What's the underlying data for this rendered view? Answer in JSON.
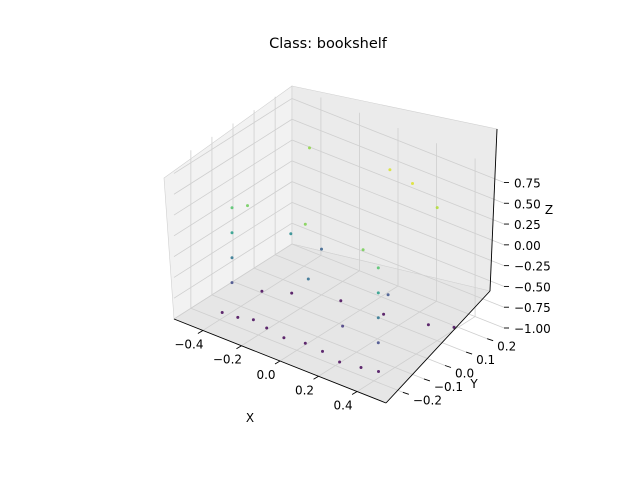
{
  "chart_data": {
    "type": "scatter",
    "title": "Class: bookshelf",
    "xlabel": "X",
    "ylabel": "Y",
    "zlabel": "Z",
    "xlim": [
      -0.55,
      0.55
    ],
    "ylim": [
      -0.28,
      0.28
    ],
    "zlim": [
      -1.0,
      0.9
    ],
    "x_ticks": [
      "−0.4",
      "−0.2",
      "0.0",
      "0.2",
      "0.4"
    ],
    "y_ticks": [
      "−0.2",
      "−0.1",
      "0.0",
      "0.1",
      "0.2"
    ],
    "z_ticks": [
      "−1.00",
      "−0.75",
      "−0.50",
      "−0.25",
      "0.00",
      "0.25",
      "0.50",
      "0.75"
    ],
    "x_tick_values": [
      -0.4,
      -0.2,
      0.0,
      0.2,
      0.4
    ],
    "y_tick_values": [
      -0.2,
      -0.1,
      0.0,
      0.1,
      0.2
    ],
    "z_tick_values": [
      -1.0,
      -0.75,
      -0.5,
      -0.25,
      0.0,
      0.25,
      0.5,
      0.75
    ],
    "colormap": "viridis",
    "color_by": "z",
    "grid": true,
    "marker_size": 1.5,
    "point_color_range": [
      "#440154",
      "#fde725"
    ],
    "series": [
      {
        "points": [
          [
            -0.42,
            -0.17,
            -0.98
          ],
          [
            -0.35,
            -0.16,
            -0.99
          ],
          [
            -0.28,
            -0.15,
            -0.97
          ],
          [
            -0.2,
            -0.16,
            -0.98
          ],
          [
            -0.1,
            -0.17,
            -0.99
          ],
          [
            0.0,
            -0.16,
            -0.98
          ],
          [
            0.1,
            -0.17,
            -0.97
          ],
          [
            0.2,
            -0.18,
            -0.99
          ],
          [
            0.3,
            -0.17,
            -0.98
          ],
          [
            0.38,
            -0.16,
            -0.97
          ],
          [
            -0.4,
            0.0,
            -0.98
          ],
          [
            -0.3,
            0.05,
            -0.99
          ],
          [
            -0.1,
            0.1,
            -0.98
          ],
          [
            0.1,
            0.12,
            -0.99
          ],
          [
            0.3,
            0.15,
            -0.98
          ],
          [
            0.4,
            0.18,
            -0.97
          ],
          [
            -0.38,
            -0.16,
            -0.6
          ],
          [
            -0.38,
            -0.16,
            -0.3
          ],
          [
            -0.38,
            -0.16,
            0.0
          ],
          [
            -0.38,
            -0.16,
            0.3
          ],
          [
            0.39,
            -0.17,
            -0.6
          ],
          [
            0.39,
            -0.17,
            -0.3
          ],
          [
            0.39,
            -0.17,
            0.0
          ],
          [
            0.39,
            -0.17,
            0.3
          ],
          [
            0.0,
            -0.16,
            0.45
          ],
          [
            -0.3,
            -0.16,
            0.4
          ],
          [
            0.3,
            -0.16,
            0.42
          ],
          [
            0.1,
            0.15,
            0.7
          ],
          [
            0.25,
            0.12,
            0.72
          ],
          [
            0.4,
            0.1,
            0.6
          ],
          [
            -0.35,
            0.18,
            0.5
          ],
          [
            -0.2,
            0.1,
            -0.45
          ],
          [
            0.2,
            0.05,
            -0.55
          ],
          [
            -0.05,
            -0.1,
            -0.35
          ],
          [
            0.15,
            -0.12,
            -0.7
          ],
          [
            -0.25,
            0.0,
            -0.15
          ]
        ]
      }
    ]
  }
}
